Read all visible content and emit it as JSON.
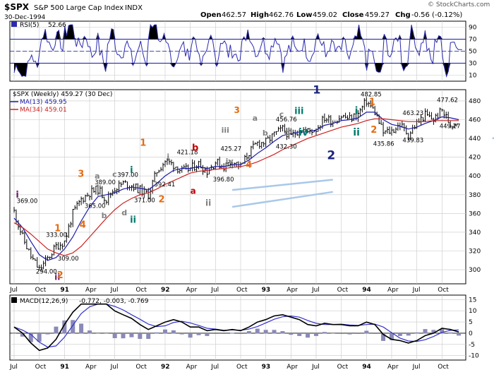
{
  "header": {
    "symbol": "$SPX",
    "name": "S&P 500 Large Cap Index",
    "exchange": "INDX",
    "date": "30-Dec-1994",
    "watermark": "© StockCharts.com",
    "open_label": "Open",
    "open": "462.57",
    "high_label": "High",
    "high": "462.76",
    "low_label": "Low",
    "low": "459.02",
    "close_label": "Close",
    "close": "459.27",
    "chg_label": "Chg",
    "chg": "-0.56 (-0.12%)"
  },
  "colors": {
    "background": "#ffffff",
    "panel_border": "#000000",
    "grid": "#c8c8c8",
    "price": "#000000",
    "ma13": "#1a1aa8",
    "ma34": "#cc2222",
    "rsi_line": "#2a2ab0",
    "rsi_fill": "#000000",
    "macd_line": "#000000",
    "macd_signal": "#3333cc",
    "histogram": "#8a8ab8",
    "channel": "#a8c8e8",
    "wave_orange": "#e46b10",
    "wave_red": "#c00000",
    "wave_navy": "#1a237e",
    "wave_teal": "#00796b",
    "wave_gray": "#808080",
    "wave_purple": "#6a1b6a"
  },
  "rsi_panel": {
    "label": "RSI(5)",
    "value": "52.66",
    "type": "line",
    "ylim": [
      0,
      100
    ],
    "ticks": [
      "90",
      "70",
      "50",
      "30",
      "10"
    ],
    "overbought": 70,
    "oversold": 30
  },
  "price_panel": {
    "legend": [
      {
        "label": "$SPX (Weekly) 459.27 (30 Dec)"
      },
      {
        "label": "MA(13) 459.95"
      },
      {
        "label": "MA(34) 459.01"
      }
    ],
    "ticks": [
      "480",
      "460",
      "440",
      "420",
      "400",
      "380",
      "360",
      "340",
      "320",
      "300"
    ]
  },
  "macd_panel": {
    "label": "MACD(12,26,9)",
    "values": "-0.772, -0.003, -0.769",
    "ticks": [
      "15",
      "10",
      "5",
      "0",
      "-5",
      "-10"
    ]
  },
  "x_axis": {
    "labels": [
      "Jul",
      "Oct",
      "91",
      "Apr",
      "Jul",
      "Oct",
      "92",
      "Apr",
      "Jul",
      "Oct",
      "93",
      "Apr",
      "Jul",
      "Oct",
      "94",
      "Apr",
      "Jul",
      "Oct"
    ]
  },
  "annotations": {
    "price_labels": [
      "369.00",
      "333.00",
      "309.00",
      "294.00",
      "389.00",
      "397.00",
      "365.00",
      "371.00",
      "421.18",
      "392.41",
      "425.27",
      "396.80",
      "456.76",
      "432.30",
      "482.85",
      "463.23",
      "435.86",
      "439.83",
      "477.62",
      "449.27"
    ],
    "waves": [
      {
        "text": "i",
        "color": "purple"
      },
      {
        "text": "ii",
        "color": "purple"
      },
      {
        "text": "1",
        "color": "orange"
      },
      {
        "text": "2",
        "color": "orange"
      },
      {
        "text": "3",
        "color": "orange"
      },
      {
        "text": "4",
        "color": "orange"
      },
      {
        "text": "a",
        "color": "gray"
      },
      {
        "text": "b",
        "color": "gray"
      },
      {
        "text": "c",
        "color": "gray"
      },
      {
        "text": "d",
        "color": "gray"
      },
      {
        "text": "i",
        "color": "teal"
      },
      {
        "text": "ii",
        "color": "teal"
      },
      {
        "text": "1",
        "color": "orange"
      },
      {
        "text": "i",
        "color": "gray"
      },
      {
        "text": "a",
        "color": "red"
      },
      {
        "text": "b",
        "color": "red"
      },
      {
        "text": "2",
        "color": "orange"
      },
      {
        "text": "ii",
        "color": "gray"
      },
      {
        "text": "iii",
        "color": "gray"
      },
      {
        "text": "iv",
        "color": "gray"
      },
      {
        "text": "3",
        "color": "orange"
      },
      {
        "text": "4",
        "color": "orange"
      },
      {
        "text": "a",
        "color": "gray"
      },
      {
        "text": "b",
        "color": "gray"
      },
      {
        "text": "c",
        "color": "gray"
      },
      {
        "text": "d",
        "color": "gray"
      },
      {
        "text": "iii",
        "color": "teal"
      },
      {
        "text": "iv",
        "color": "teal"
      },
      {
        "text": "1",
        "color": "navy"
      },
      {
        "text": "2",
        "color": "navy"
      },
      {
        "text": "i",
        "color": "teal"
      },
      {
        "text": "ii",
        "color": "teal"
      },
      {
        "text": "1",
        "color": "orange"
      },
      {
        "text": "2",
        "color": "orange"
      }
    ]
  },
  "chart_data": {
    "type": "line",
    "title": "$SPX S&P 500 Large Cap Index INDX",
    "xlabel": "",
    "ylabel": "",
    "ylim": [
      285,
      492
    ],
    "grid": true,
    "x": [
      "1990-07",
      "1990-08",
      "1990-09",
      "1990-10",
      "1990-11",
      "1990-12",
      "1991-01",
      "1991-02",
      "1991-03",
      "1991-04",
      "1991-05",
      "1991-06",
      "1991-07",
      "1991-08",
      "1991-09",
      "1991-10",
      "1991-11",
      "1991-12",
      "1992-01",
      "1992-02",
      "1992-03",
      "1992-04",
      "1992-05",
      "1992-06",
      "1992-07",
      "1992-08",
      "1992-09",
      "1992-10",
      "1992-11",
      "1992-12",
      "1993-01",
      "1993-02",
      "1993-03",
      "1993-04",
      "1993-05",
      "1993-06",
      "1993-07",
      "1993-08",
      "1993-09",
      "1993-10",
      "1993-11",
      "1993-12",
      "1994-01",
      "1994-02",
      "1994-03",
      "1994-04",
      "1994-05",
      "1994-06",
      "1994-07",
      "1994-08",
      "1994-09",
      "1994-10",
      "1994-11",
      "1994-12"
    ],
    "series": [
      {
        "name": "$SPX (Weekly)",
        "values": [
          362,
          335,
          314,
          300,
          312,
          325,
          330,
          360,
          375,
          382,
          386,
          375,
          387,
          392,
          390,
          385,
          380,
          405,
          416,
          412,
          405,
          408,
          413,
          405,
          415,
          410,
          416,
          410,
          425,
          435,
          436,
          444,
          450,
          442,
          450,
          448,
          450,
          462,
          458,
          464,
          461,
          466,
          480,
          468,
          446,
          448,
          455,
          444,
          456,
          465,
          460,
          470,
          455,
          459
        ]
      },
      {
        "name": "MA(13)",
        "values": [
          355,
          345,
          330,
          316,
          310,
          313,
          322,
          335,
          352,
          367,
          378,
          380,
          382,
          386,
          388,
          387,
          385,
          392,
          400,
          406,
          408,
          408,
          410,
          408,
          410,
          410,
          412,
          412,
          417,
          424,
          430,
          437,
          443,
          445,
          447,
          447,
          449,
          454,
          456,
          459,
          460,
          462,
          468,
          468,
          460,
          455,
          453,
          450,
          452,
          456,
          459,
          463,
          462,
          460
        ]
      },
      {
        "name": "MA(34)",
        "values": [
          350,
          345,
          338,
          330,
          322,
          318,
          315,
          318,
          325,
          335,
          345,
          355,
          364,
          371,
          376,
          380,
          382,
          386,
          391,
          395,
          399,
          403,
          405,
          406,
          407,
          408,
          409,
          410,
          412,
          415,
          419,
          423,
          428,
          432,
          436,
          440,
          443,
          446,
          449,
          452,
          454,
          456,
          459,
          461,
          461,
          460,
          459,
          458,
          458,
          458,
          459,
          459,
          459,
          459
        ]
      }
    ],
    "rsi": {
      "name": "RSI(5)",
      "last": 52.66
    },
    "macd": {
      "name": "MACD(12,26,9)",
      "values": [
        -0.772,
        -0.003,
        -0.769
      ]
    }
  }
}
